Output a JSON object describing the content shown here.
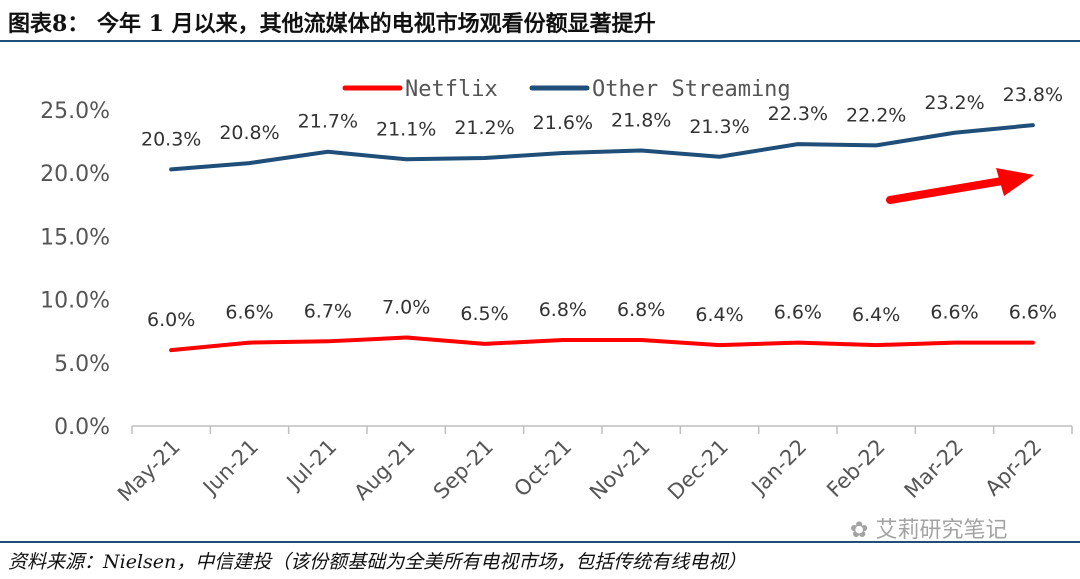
{
  "figure": {
    "title": "图表8： 今年 1 月以来，其他流媒体的电视市场观看份额显著提升",
    "source": "资料来源：Nielsen，中信建投（该份额基础为全美所有电视市场，包括传统有线电视）",
    "watermark": "艾莉研究笔记"
  },
  "chart_data": {
    "type": "line",
    "title": "",
    "xlabel": "",
    "ylabel": "",
    "categories": [
      "May-21",
      "Jun-21",
      "Jul-21",
      "Aug-21",
      "Sep-21",
      "Oct-21",
      "Nov-21",
      "Dec-21",
      "Jan-22",
      "Feb-22",
      "Mar-22",
      "Apr-22"
    ],
    "y_ticks": [
      "0.0%",
      "5.0%",
      "10.0%",
      "15.0%",
      "20.0%",
      "25.0%"
    ],
    "ylim": [
      0,
      25
    ],
    "grid": false,
    "legend_position": "top",
    "series": [
      {
        "name": "Netflix",
        "color": "#ff0000",
        "values": [
          6.0,
          6.6,
          6.7,
          7.0,
          6.5,
          6.8,
          6.8,
          6.4,
          6.6,
          6.4,
          6.6,
          6.6
        ],
        "labels": [
          "6.0%",
          "6.6%",
          "6.7%",
          "7.0%",
          "6.5%",
          "6.8%",
          "6.8%",
          "6.4%",
          "6.6%",
          "6.4%",
          "6.6%",
          "6.6%"
        ]
      },
      {
        "name": "Other Streaming",
        "color": "#1f4e79",
        "values": [
          20.3,
          20.8,
          21.7,
          21.1,
          21.2,
          21.6,
          21.8,
          21.3,
          22.3,
          22.2,
          23.2,
          23.8
        ],
        "labels": [
          "20.3%",
          "20.8%",
          "21.7%",
          "21.1%",
          "21.2%",
          "21.6%",
          "21.8%",
          "21.3%",
          "22.3%",
          "22.2%",
          "23.2%",
          "23.8%"
        ]
      }
    ],
    "annotation": {
      "type": "arrow",
      "color": "#ff0000",
      "direction": "up-right"
    }
  }
}
